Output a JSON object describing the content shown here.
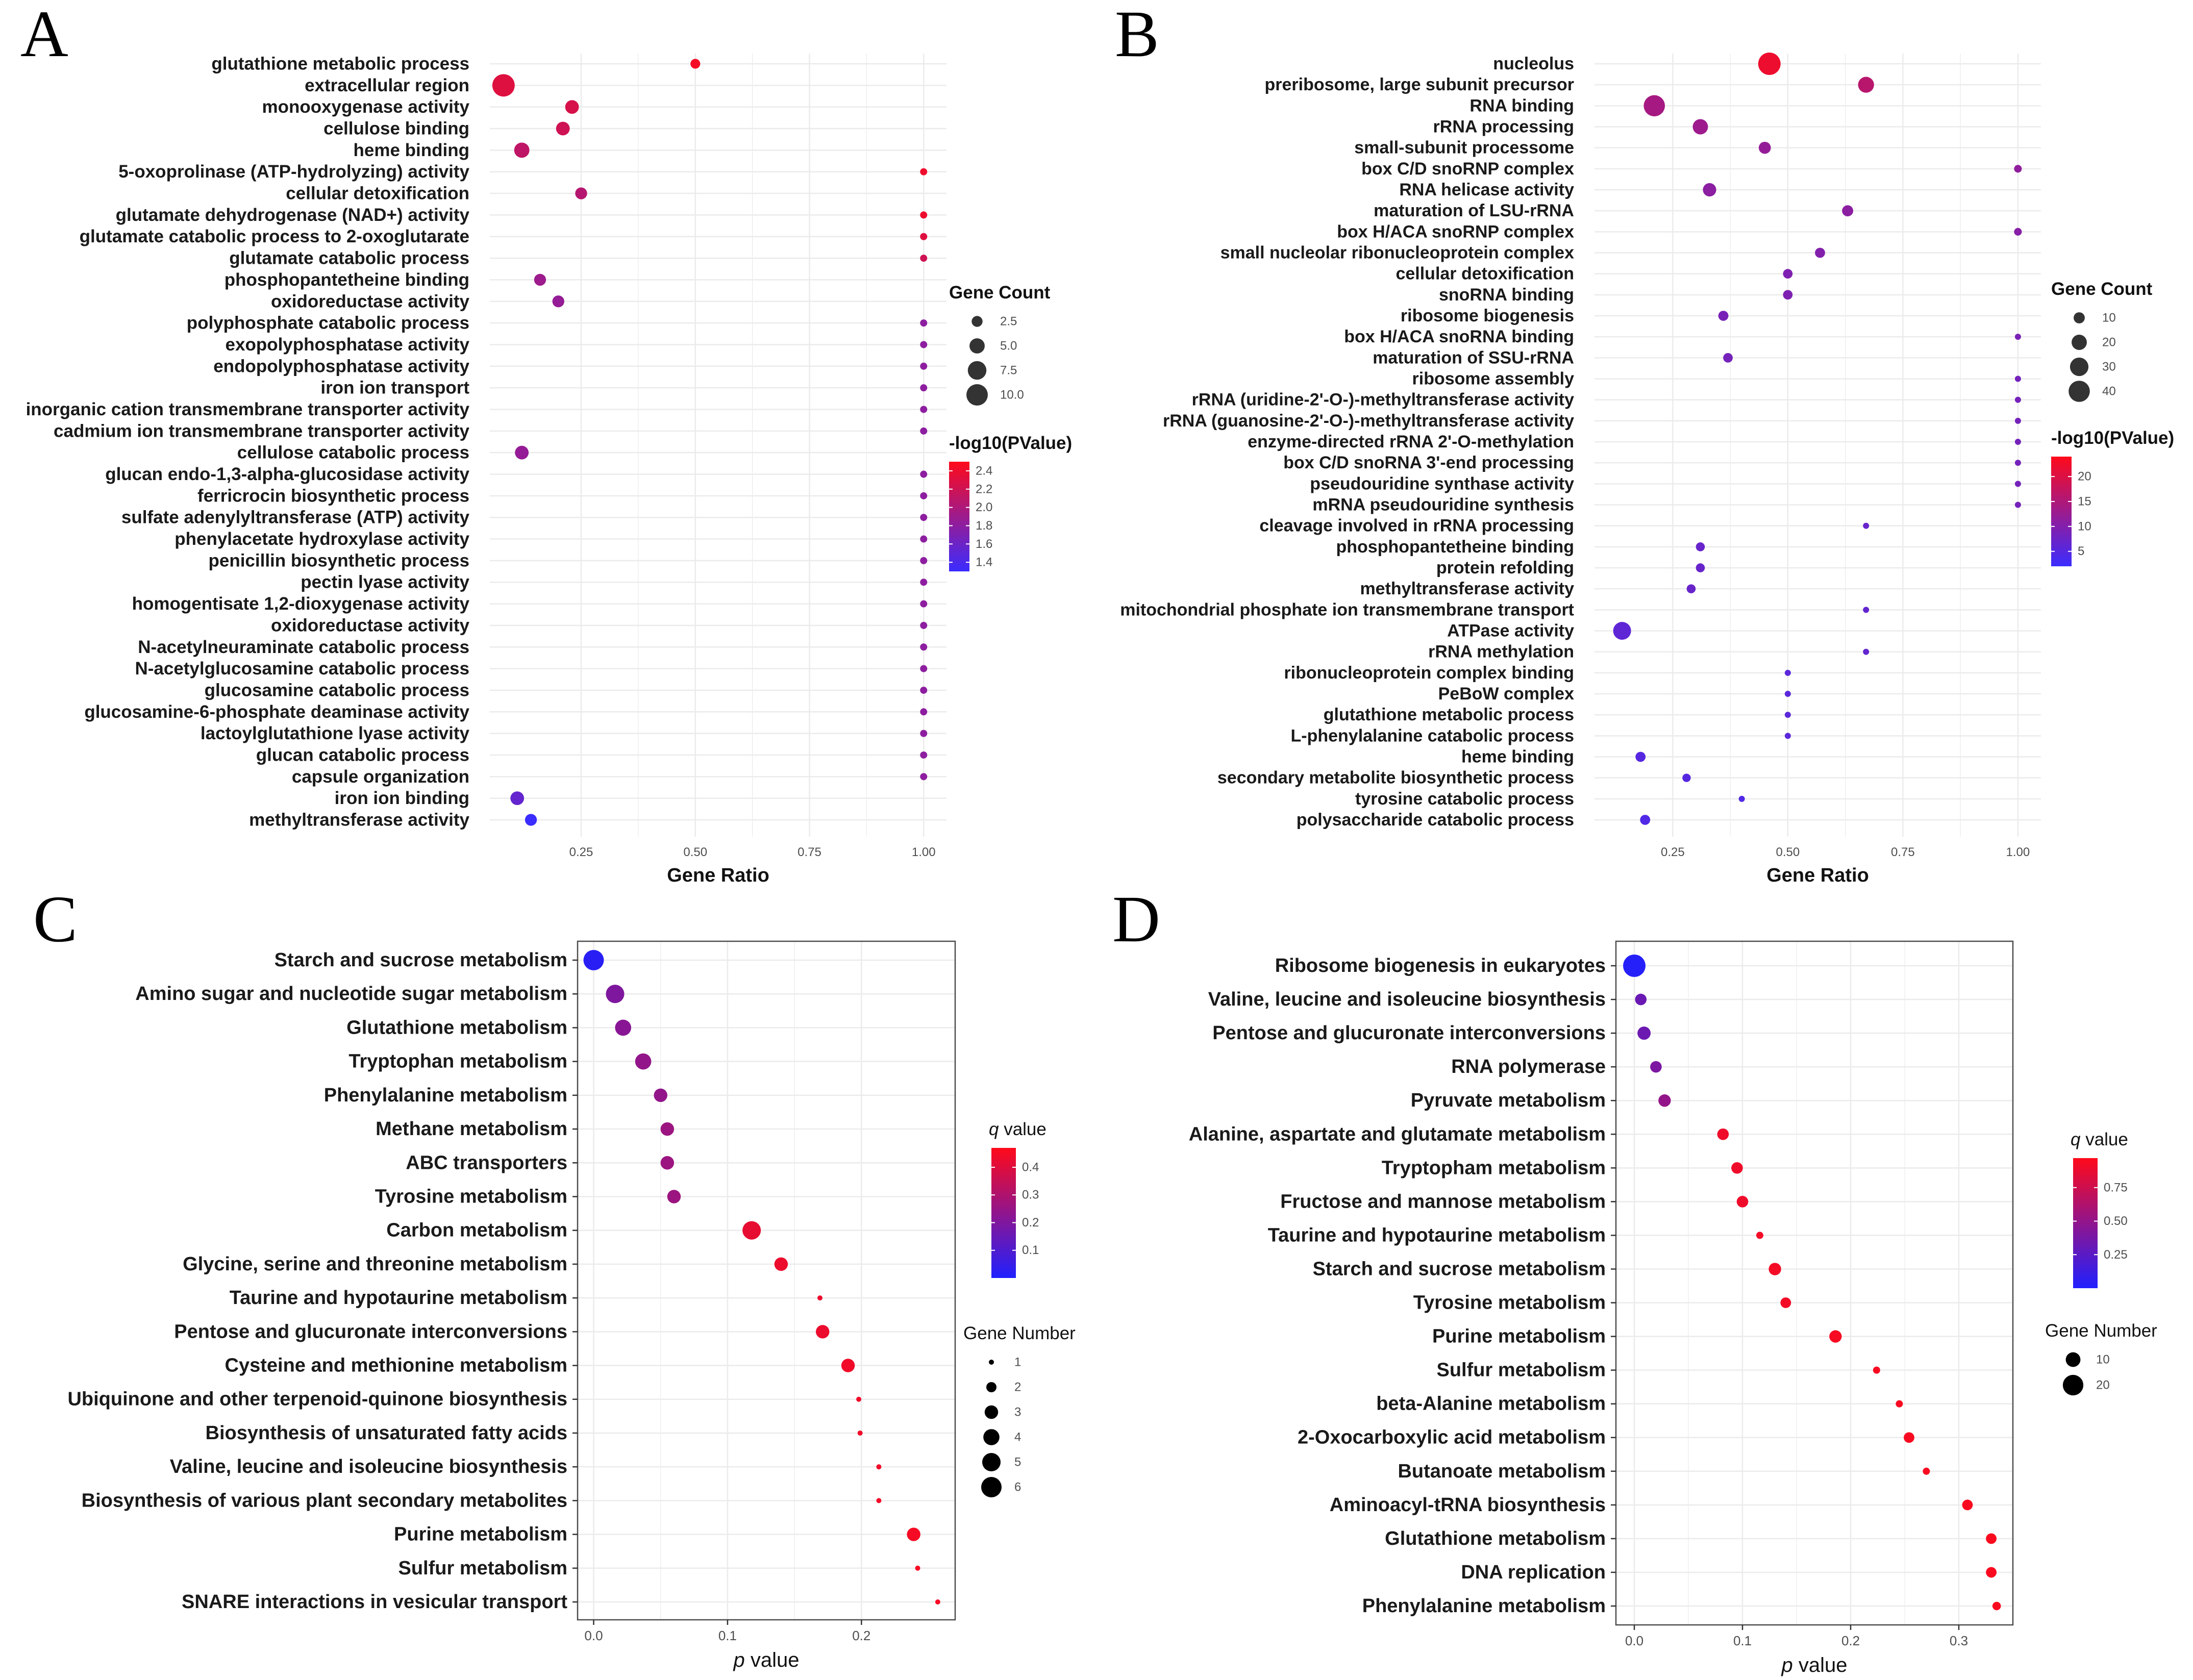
{
  "chart_data": [
    {
      "panel": "A",
      "type": "scatter",
      "xlabel": "Gene Ratio",
      "ylabel": "",
      "xlim": [
        0.05,
        1.05
      ],
      "xticks": [
        "0.25",
        "0.50",
        "0.75",
        "1.00"
      ],
      "xtick_values": [
        0.25,
        0.5,
        0.75,
        1.0
      ],
      "categories": [
        "glutathione metabolic process",
        "extracellular region",
        "monooxygenase activity",
        "cellulose binding",
        "heme binding",
        "5-oxoprolinase (ATP-hydrolyzing) activity",
        "cellular detoxification",
        "glutamate dehydrogenase (NAD+) activity",
        "glutamate catabolic process to 2-oxoglutarate",
        "glutamate catabolic process",
        "phosphopantetheine binding",
        "oxidoreductase activity",
        "polyphosphate catabolic process",
        "exopolyphosphatase activity",
        "endopolyphosphatase activity",
        "iron ion transport",
        "inorganic cation transmembrane transporter activity",
        "cadmium ion transmembrane transporter activity",
        "cellulose catabolic process",
        "glucan endo-1,3-alpha-glucosidase activity",
        "ferricrocin biosynthetic process",
        "sulfate adenylyltransferase (ATP) activity",
        "phenylacetate hydroxylase activity",
        "penicillin biosynthetic process",
        "pectin lyase activity",
        "homogentisate 1,2-dioxygenase activity",
        "oxidoreductase activity",
        "N-acetylneuraminate catabolic process",
        "N-acetylglucosamine catabolic process",
        "glucosamine catabolic process",
        "glucosamine-6-phosphate deaminase activity",
        "lactoylglutathione lyase activity",
        "glucan catabolic process",
        "capsule organization",
        "iron ion binding",
        "methyltransferase activity"
      ],
      "x": [
        0.5,
        0.08,
        0.23,
        0.21,
        0.12,
        1.0,
        0.25,
        1.0,
        1.0,
        1.0,
        0.16,
        0.2,
        1.0,
        1.0,
        1.0,
        1.0,
        1.0,
        1.0,
        0.12,
        1.0,
        1.0,
        1.0,
        1.0,
        1.0,
        1.0,
        1.0,
        1.0,
        1.0,
        1.0,
        1.0,
        1.0,
        1.0,
        1.0,
        1.0,
        0.11,
        0.14
      ],
      "size": [
        2,
        11,
        4,
        4,
        5,
        1,
        3,
        1,
        1,
        1,
        3,
        3,
        1,
        1,
        1,
        1,
        1,
        1,
        4,
        1,
        1,
        1,
        1,
        1,
        1,
        1,
        1,
        1,
        1,
        1,
        1,
        1,
        1,
        1,
        4,
        3
      ],
      "color": [
        2.45,
        2.3,
        2.25,
        2.2,
        2.1,
        2.4,
        2.05,
        2.4,
        2.3,
        2.2,
        1.9,
        1.85,
        1.8,
        1.8,
        1.8,
        1.8,
        1.8,
        1.8,
        1.85,
        1.8,
        1.8,
        1.8,
        1.8,
        1.8,
        1.8,
        1.8,
        1.8,
        1.8,
        1.8,
        1.8,
        1.8,
        1.8,
        1.8,
        1.8,
        1.55,
        1.3
      ],
      "size_legend": {
        "title": "Gene Count",
        "labels": [
          "2.5",
          "5.0",
          "7.5",
          "10.0"
        ],
        "values": [
          2.5,
          5.0,
          7.5,
          10.0
        ]
      },
      "color_legend": {
        "title": "-log10(PValue)",
        "labels": [
          "2.4",
          "2.2",
          "2.0",
          "1.8",
          "1.6",
          "1.4"
        ],
        "values": [
          2.4,
          2.2,
          2.0,
          1.8,
          1.6,
          1.4
        ],
        "range": [
          1.3,
          2.5
        ],
        "low": "#3b2cff",
        "high": "#ff0a1a"
      }
    },
    {
      "panel": "B",
      "type": "scatter",
      "xlabel": "Gene Ratio",
      "ylabel": "",
      "xlim": [
        0.08,
        1.05
      ],
      "xticks": [
        "0.25",
        "0.50",
        "0.75",
        "1.00"
      ],
      "xtick_values": [
        0.25,
        0.5,
        0.75,
        1.0
      ],
      "categories": [
        "nucleolus",
        "preribosome, large subunit precursor",
        "RNA binding",
        "rRNA processing",
        "small-subunit processome",
        "box C/D snoRNP complex",
        "RNA helicase activity",
        "maturation of LSU-rRNA",
        "box H/ACA snoRNP complex",
        "small nucleolar ribonucleoprotein complex",
        "cellular detoxification",
        "snoRNA binding",
        "ribosome biogenesis",
        "box H/ACA snoRNA binding",
        "maturation of SSU-rRNA",
        "ribosome assembly",
        "rRNA (uridine-2'-O-)-methyltransferase activity",
        "rRNA (guanosine-2'-O-)-methyltransferase activity",
        "enzyme-directed rRNA 2'-O-methylation",
        "box C/D snoRNA 3'-end processing",
        "pseudouridine synthase activity",
        "mRNA pseudouridine synthesis",
        "cleavage involved in rRNA processing",
        "phosphopantetheine binding",
        "protein refolding",
        "methyltransferase activity",
        "mitochondrial phosphate ion transmembrane transport",
        "ATPase activity",
        "rRNA methylation",
        "ribonucleoprotein complex binding",
        "PeBoW complex",
        "glutathione metabolic process",
        "L-phenylalanine catabolic process",
        "heme binding",
        "secondary metabolite biosynthetic process",
        "tyrosine catabolic process",
        "polysaccharide catabolic process"
      ],
      "x": [
        0.46,
        0.67,
        0.21,
        0.31,
        0.45,
        1.0,
        0.33,
        0.63,
        1.0,
        0.57,
        0.5,
        0.5,
        0.36,
        1.0,
        0.37,
        1.0,
        1.0,
        1.0,
        1.0,
        1.0,
        1.0,
        1.0,
        0.67,
        0.31,
        0.31,
        0.29,
        0.67,
        0.14,
        0.67,
        0.5,
        0.5,
        0.5,
        0.5,
        0.18,
        0.28,
        0.4,
        0.19
      ],
      "size": [
        45,
        22,
        40,
        20,
        12,
        4,
        15,
        10,
        4,
        8,
        7,
        7,
        8,
        2,
        7,
        2,
        2,
        2,
        2,
        2,
        2,
        2,
        2,
        6,
        6,
        6,
        2,
        28,
        2,
        2,
        2,
        2,
        2,
        8,
        5,
        2,
        8
      ],
      "color": [
        22,
        16,
        14,
        13,
        12,
        11.5,
        11,
        11,
        10.5,
        10,
        9.5,
        9.5,
        9,
        9,
        8.5,
        8.5,
        8.5,
        8.5,
        8.5,
        8.5,
        8.5,
        8.5,
        7,
        7,
        7,
        7,
        6.5,
        6,
        6.5,
        5.5,
        5.5,
        5.5,
        5.5,
        5,
        5,
        4.5,
        4.5
      ],
      "size_legend": {
        "title": "Gene Count",
        "labels": [
          "10",
          "20",
          "30",
          "40"
        ],
        "values": [
          10,
          20,
          30,
          40
        ]
      },
      "color_legend": {
        "title": "-log10(PValue)",
        "labels": [
          "20",
          "15",
          "10",
          "5"
        ],
        "values": [
          20,
          15,
          10,
          5
        ],
        "range": [
          2,
          24
        ],
        "low": "#3b2cff",
        "high": "#ff0a1a"
      }
    },
    {
      "panel": "C",
      "type": "scatter",
      "xlabel": "p value",
      "ylabel": "",
      "xlim": [
        -0.012,
        0.27
      ],
      "xticks": [
        "0.0",
        "0.1",
        "0.2"
      ],
      "xtick_values": [
        0.0,
        0.1,
        0.2
      ],
      "categories": [
        "Starch and sucrose metabolism",
        "Amino sugar and nucleotide sugar metabolism",
        "Glutathione metabolism",
        "Tryptophan metabolism",
        "Phenylalanine metabolism",
        "Methane metabolism",
        "ABC transporters",
        "Tyrosine metabolism",
        "Carbon metabolism",
        "Glycine, serine and threonine metabolism",
        "Taurine and hypotaurine metabolism",
        "Pentose and glucuronate interconversions",
        "Cysteine and methionine metabolism",
        "Ubiquinone and other terpenoid-quinone biosynthesis",
        "Biosynthesis of unsaturated fatty acids",
        "Valine, leucine and isoleucine biosynthesis",
        "Biosynthesis of various plant secondary metabolites",
        "Purine metabolism",
        "Sulfur metabolism",
        "SNARE interactions in vesicular transport"
      ],
      "x": [
        0.0,
        0.016,
        0.022,
        0.037,
        0.05,
        0.055,
        0.055,
        0.06,
        0.118,
        0.14,
        0.169,
        0.171,
        0.19,
        0.198,
        0.199,
        0.213,
        0.213,
        0.239,
        0.242,
        0.257
      ],
      "size": [
        6,
        5,
        4,
        4,
        3,
        3,
        3,
        3,
        5,
        3,
        1,
        3,
        3,
        1,
        1,
        1,
        1,
        3,
        1,
        1
      ],
      "color": [
        0.02,
        0.2,
        0.22,
        0.24,
        0.24,
        0.26,
        0.26,
        0.26,
        0.42,
        0.43,
        0.43,
        0.43,
        0.44,
        0.44,
        0.44,
        0.44,
        0.44,
        0.45,
        0.45,
        0.45
      ],
      "size_legend": {
        "title": "Gene Number",
        "labels": [
          "1",
          "2",
          "3",
          "4",
          "5",
          "6"
        ],
        "values": [
          1,
          2,
          3,
          4,
          5,
          6
        ]
      },
      "color_legend": {
        "title_italic": "q",
        "title_rest": " value",
        "labels": [
          "0.4",
          "0.3",
          "0.2",
          "0.1"
        ],
        "values": [
          0.4,
          0.3,
          0.2,
          0.1
        ],
        "range": [
          0.0,
          0.47
        ],
        "low": "#2020ff",
        "high": "#ff0a1a"
      }
    },
    {
      "panel": "D",
      "type": "scatter",
      "xlabel": "p value",
      "ylabel": "",
      "xlim": [
        -0.017,
        0.35
      ],
      "xticks": [
        "0.0",
        "0.1",
        "0.2",
        "0.3"
      ],
      "xtick_values": [
        0.0,
        0.1,
        0.2,
        0.3
      ],
      "categories": [
        "Ribosome biogenesis in eukaryotes",
        "Valine, leucine and isoleucine biosynthesis",
        "Pentose and glucuronate interconversions",
        "RNA polymerase",
        "Pyruvate metabolism",
        "Alanine, aspartate and glutamate metabolism",
        "Tryptopham metabolism",
        "Fructose and mannose metabolism",
        "Taurine and hypotaurine metabolism",
        "Starch and sucrose metabolism",
        "Tyrosine metabolism",
        "Purine metabolism",
        "Sulfur metabolism",
        "beta-Alanine metabolism",
        "2-Oxocarboxylic acid metabolism",
        "Butanoate metabolism",
        "Aminoacyl-tRNA biosynthesis",
        "Glutathione metabolism",
        "DNA replication",
        "Phenylalanine metabolism"
      ],
      "x": [
        0.0,
        0.006,
        0.009,
        0.02,
        0.028,
        0.082,
        0.095,
        0.1,
        0.116,
        0.13,
        0.14,
        0.186,
        0.224,
        0.245,
        0.254,
        0.27,
        0.308,
        0.33,
        0.33,
        0.335
      ],
      "size": [
        24,
        6,
        8,
        6,
        7,
        6,
        6,
        6,
        2,
        7,
        5,
        7,
        2,
        2,
        5,
        2,
        5,
        5,
        5,
        3
      ],
      "color": [
        0.02,
        0.32,
        0.33,
        0.4,
        0.5,
        0.9,
        0.9,
        0.9,
        0.92,
        0.92,
        0.92,
        0.93,
        0.94,
        0.94,
        0.94,
        0.94,
        0.95,
        0.95,
        0.95,
        0.95
      ],
      "size_legend": {
        "title": "Gene Number",
        "labels": [
          "10",
          "20"
        ],
        "values": [
          10,
          20
        ]
      },
      "color_legend": {
        "title_italic": "q",
        "title_rest": " value",
        "labels": [
          "0.75",
          "0.50",
          "0.25"
        ],
        "values": [
          0.75,
          0.5,
          0.25
        ],
        "range": [
          0.0,
          0.97
        ],
        "low": "#2020ff",
        "high": "#ff0a1a"
      }
    }
  ]
}
